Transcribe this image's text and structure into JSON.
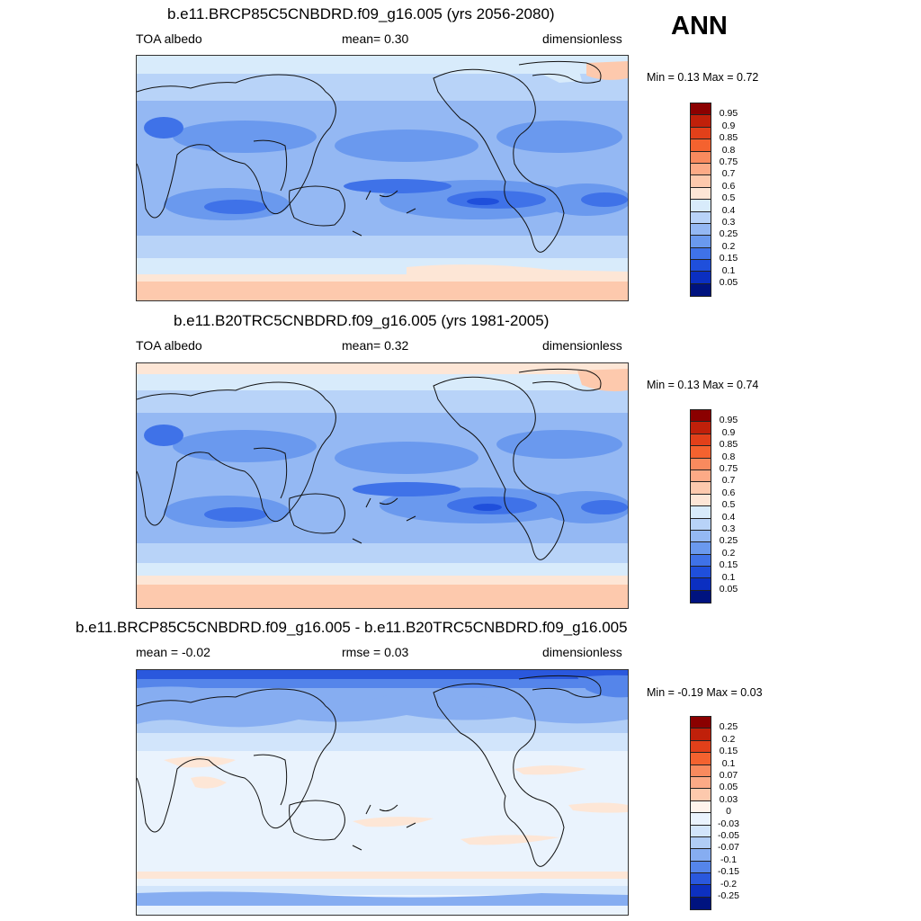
{
  "season": "ANN",
  "panels": [
    {
      "title": "b.e11.BRCP85C5CNBDRD.f09_g16.005 (yrs 2056-2080)",
      "left_label": "TOA albedo",
      "center_label": "mean=   0.30",
      "right_label": "dimensionless",
      "minmax": "Min =   0.13 Max =   0.72",
      "colorbar": {
        "labels": [
          "0.95",
          "0.9",
          "0.85",
          "0.8",
          "0.75",
          "0.7",
          "0.6",
          "0.5",
          "0.4",
          "0.3",
          "0.25",
          "0.2",
          "0.15",
          "0.1",
          "0.05"
        ],
        "colors": [
          "#8B0000",
          "#C0200A",
          "#E2401A",
          "#F4622F",
          "#F98A5E",
          "#FCAA86",
          "#FDC9AD",
          "#FDE6D6",
          "#D8EBFB",
          "#B8D3F8",
          "#94B8F3",
          "#6A99EE",
          "#3F72E8",
          "#1F4FDB",
          "#0B2FC1",
          "#00137F"
        ]
      }
    },
    {
      "title": "b.e11.B20TRC5CNBDRD.f09_g16.005 (yrs 1981-2005)",
      "left_label": "TOA albedo",
      "center_label": "mean=   0.32",
      "right_label": "dimensionless",
      "minmax": "Min =   0.13 Max =   0.74",
      "colorbar": {
        "labels": [
          "0.95",
          "0.9",
          "0.85",
          "0.8",
          "0.75",
          "0.7",
          "0.6",
          "0.5",
          "0.4",
          "0.3",
          "0.25",
          "0.2",
          "0.15",
          "0.1",
          "0.05"
        ],
        "colors": [
          "#8B0000",
          "#C0200A",
          "#E2401A",
          "#F4622F",
          "#F98A5E",
          "#FCAA86",
          "#FDC9AD",
          "#FDE6D6",
          "#D8EBFB",
          "#B8D3F8",
          "#94B8F3",
          "#6A99EE",
          "#3F72E8",
          "#1F4FDB",
          "#0B2FC1",
          "#00137F"
        ]
      }
    },
    {
      "title": "b.e11.BRCP85C5CNBDRD.f09_g16.005 - b.e11.B20TRC5CNBDRD.f09_g16.005",
      "left_label": "mean =  -0.02",
      "center_label": "rmse =   0.03",
      "right_label": "dimensionless",
      "minmax": "Min =  -0.19 Max =   0.03",
      "colorbar": {
        "labels": [
          "0.25",
          "0.2",
          "0.15",
          "0.1",
          "0.07",
          "0.05",
          "0.03",
          "0",
          "-0.03",
          "-0.05",
          "-0.07",
          "-0.1",
          "-0.15",
          "-0.2",
          "-0.25"
        ],
        "colors": [
          "#8B0000",
          "#C0200A",
          "#E2401A",
          "#F4622F",
          "#F98A5E",
          "#FCAA86",
          "#FDC9AD",
          "#FFF3EC",
          "#EAF3FD",
          "#D2E5FB",
          "#B0CDF6",
          "#86ADF1",
          "#5585EA",
          "#2A58DD",
          "#0D30C0",
          "#00137F"
        ]
      }
    }
  ]
}
